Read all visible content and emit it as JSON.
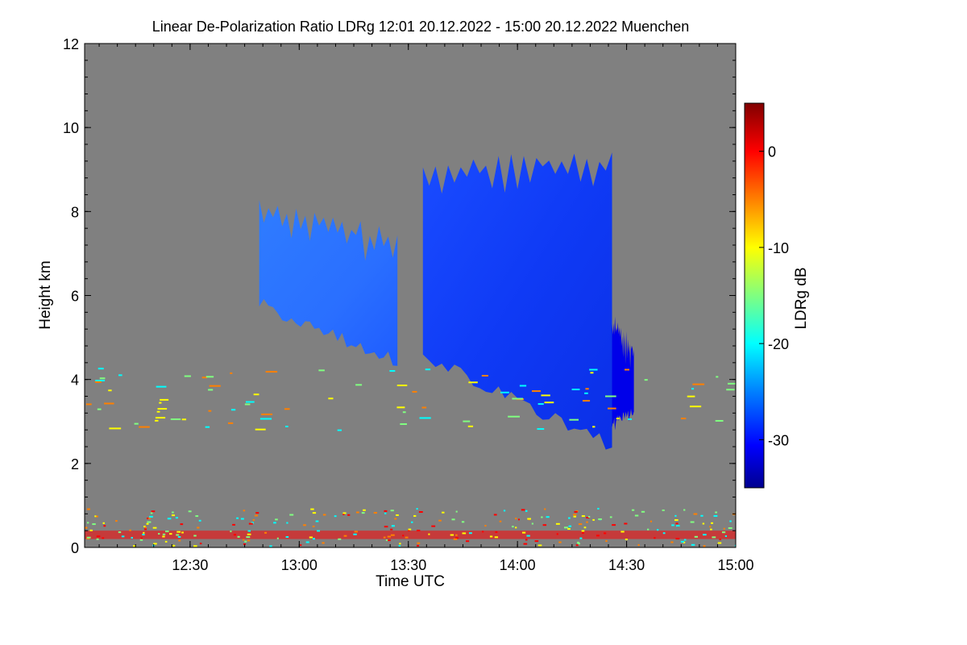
{
  "chart_data": {
    "type": "heatmap",
    "title": "Linear De-Polarization Ratio LDRg   12:01 20.12.2022 - 15:00 20.12.2022 Muenchen",
    "xlabel": "Time UTC",
    "ylabel": "Height km",
    "x_range_minutes_utc": [
      721,
      900
    ],
    "ylim": [
      0,
      12
    ],
    "x_ticks": [
      {
        "minutes": 750,
        "label": "12:30"
      },
      {
        "minutes": 780,
        "label": "13:00"
      },
      {
        "minutes": 810,
        "label": "13:30"
      },
      {
        "minutes": 840,
        "label": "14:00"
      },
      {
        "minutes": 870,
        "label": "14:30"
      },
      {
        "minutes": 900,
        "label": "15:00"
      }
    ],
    "y_ticks": [
      {
        "value": 0,
        "label": "0"
      },
      {
        "value": 2,
        "label": "2"
      },
      {
        "value": 4,
        "label": "4"
      },
      {
        "value": 6,
        "label": "6"
      },
      {
        "value": 8,
        "label": "8"
      },
      {
        "value": 10,
        "label": "10"
      },
      {
        "value": 12,
        "label": "12"
      }
    ],
    "colorbar": {
      "label": "LDRg dB",
      "range": [
        -35,
        5
      ],
      "ticks": [
        {
          "value": 0,
          "label": "0"
        },
        {
          "value": -10,
          "label": "-10"
        },
        {
          "value": -20,
          "label": "-20"
        },
        {
          "value": -30,
          "label": "-30"
        }
      ],
      "colormap": [
        "#00008f",
        "#0000ff",
        "#0080ff",
        "#00ffff",
        "#80ff80",
        "#ffff00",
        "#ff8000",
        "#ff0000",
        "#800000"
      ]
    },
    "background_color": "#808080",
    "features": [
      {
        "name": "ice-cloud-west",
        "ldr_db": -25,
        "time_minutes": [
          769,
          807
        ],
        "base_km": [
          5.8,
          4.4
        ],
        "top_km": [
          8.1,
          7.2
        ]
      },
      {
        "name": "ice-cloud-main",
        "ldr_db": -31,
        "time_minutes": [
          814,
          866
        ],
        "base_km": [
          4.6,
          2.4
        ],
        "top_km": [
          8.9,
          9.2
        ]
      },
      {
        "name": "fall-streak-east",
        "ldr_db": -31,
        "time_minutes": [
          866,
          872
        ],
        "base_km": [
          2.9,
          3.2
        ],
        "top_km": [
          5.3,
          4.7
        ]
      },
      {
        "name": "boundary-layer-aerosol",
        "ldr_db": 0,
        "time_minutes": [
          721,
          900
        ],
        "base_km": [
          0.2,
          0.2
        ],
        "top_km": [
          0.4,
          0.4
        ]
      }
    ]
  }
}
